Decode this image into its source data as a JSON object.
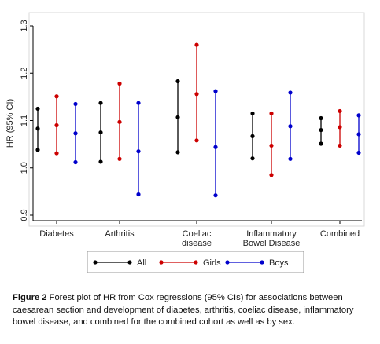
{
  "chart_data": {
    "type": "forest",
    "ylabel": "HR (95% CI)",
    "ylim": [
      0.9,
      1.3
    ],
    "yticks": [
      "0.9",
      "1.0",
      "1.1",
      "1.2",
      "1.3"
    ],
    "y_tick_values": [
      0.9,
      1.0,
      1.1,
      1.2,
      1.3
    ],
    "categories": [
      {
        "lines": [
          "Diabetes"
        ]
      },
      {
        "lines": [
          "Arthritis"
        ]
      },
      {
        "lines": [
          "Coeliac",
          "disease"
        ]
      },
      {
        "lines": [
          "Inflammatory",
          "Bowel Disease"
        ]
      },
      {
        "lines": [
          "Combined"
        ]
      }
    ],
    "series": [
      {
        "name": "All",
        "color": "#000000",
        "hr": [
          1.083,
          1.075,
          1.107,
          1.067,
          1.08
        ],
        "lower": [
          1.038,
          1.013,
          1.033,
          1.02,
          1.051
        ],
        "upper": [
          1.125,
          1.137,
          1.183,
          1.115,
          1.105
        ]
      },
      {
        "name": "Girls",
        "color": "#cc0000",
        "hr": [
          1.09,
          1.097,
          1.156,
          1.047,
          1.086
        ],
        "lower": [
          1.031,
          1.019,
          1.058,
          0.985,
          1.047
        ],
        "upper": [
          1.151,
          1.178,
          1.26,
          1.115,
          1.12
        ]
      },
      {
        "name": "Boys",
        "color": "#0000cc",
        "hr": [
          1.073,
          1.035,
          1.044,
          1.088,
          1.071
        ],
        "lower": [
          1.012,
          0.944,
          0.942,
          1.019,
          1.032
        ],
        "upper": [
          1.135,
          1.137,
          1.162,
          1.159,
          1.111
        ]
      }
    ],
    "legend_position": "bottom",
    "grid": false
  },
  "caption": {
    "label": "Figure 2",
    "text": "Forest plot of HR from Cox regressions (95% CIs) for associations between caesarean section and development of diabetes, arthritis, coeliac disease, inflammatory bowel disease, and combined for the combined cohort as well as by sex."
  }
}
